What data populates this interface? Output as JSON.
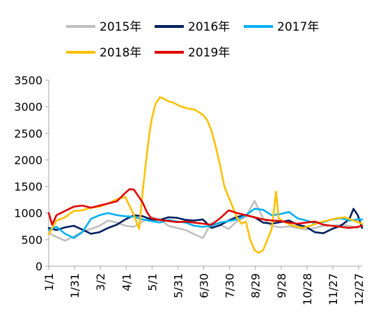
{
  "chart_data": {
    "type": "line",
    "title": "",
    "xlabel": "",
    "ylabel": "",
    "ylim": [
      0,
      3500
    ],
    "yticks": [
      0,
      500,
      1000,
      1500,
      2000,
      2500,
      3000,
      3500
    ],
    "xlim": [
      1,
      365
    ],
    "xticks": [
      {
        "day": 1,
        "label": "1/1"
      },
      {
        "day": 31,
        "label": "1/31"
      },
      {
        "day": 61,
        "label": "3/2"
      },
      {
        "day": 91,
        "label": "4/1"
      },
      {
        "day": 121,
        "label": "5/1"
      },
      {
        "day": 151,
        "label": "5/31"
      },
      {
        "day": 181,
        "label": "6/30"
      },
      {
        "day": 211,
        "label": "7/30"
      },
      {
        "day": 241,
        "label": "8/29"
      },
      {
        "day": 271,
        "label": "9/28"
      },
      {
        "day": 301,
        "label": "10/28"
      },
      {
        "day": 331,
        "label": "11/27"
      },
      {
        "day": 361,
        "label": "12/27"
      }
    ],
    "grid": false,
    "legend_position": "top",
    "series": [
      {
        "name": "2015年",
        "color": "#bfbfbf",
        "points": [
          [
            1,
            620
          ],
          [
            10,
            550
          ],
          [
            20,
            480
          ],
          [
            30,
            560
          ],
          [
            40,
            650
          ],
          [
            50,
            700
          ],
          [
            60,
            760
          ],
          [
            70,
            860
          ],
          [
            80,
            820
          ],
          [
            90,
            760
          ],
          [
            100,
            740
          ],
          [
            110,
            840
          ],
          [
            120,
            930
          ],
          [
            130,
            880
          ],
          [
            140,
            760
          ],
          [
            150,
            720
          ],
          [
            160,
            680
          ],
          [
            170,
            600
          ],
          [
            180,
            530
          ],
          [
            190,
            820
          ],
          [
            200,
            780
          ],
          [
            210,
            700
          ],
          [
            220,
            850
          ],
          [
            230,
            930
          ],
          [
            240,
            1230
          ],
          [
            250,
            900
          ],
          [
            260,
            760
          ],
          [
            270,
            730
          ],
          [
            280,
            750
          ],
          [
            290,
            720
          ],
          [
            300,
            690
          ],
          [
            310,
            720
          ],
          [
            320,
            760
          ],
          [
            330,
            760
          ],
          [
            340,
            780
          ],
          [
            350,
            760
          ],
          [
            360,
            720
          ],
          [
            365,
            800
          ]
        ]
      },
      {
        "name": "2016年",
        "color": "#002060",
        "points": [
          [
            1,
            720
          ],
          [
            10,
            680
          ],
          [
            20,
            730
          ],
          [
            30,
            760
          ],
          [
            40,
            690
          ],
          [
            50,
            610
          ],
          [
            60,
            640
          ],
          [
            70,
            720
          ],
          [
            80,
            780
          ],
          [
            90,
            880
          ],
          [
            100,
            960
          ],
          [
            110,
            940
          ],
          [
            120,
            880
          ],
          [
            130,
            870
          ],
          [
            140,
            920
          ],
          [
            150,
            910
          ],
          [
            160,
            870
          ],
          [
            170,
            860
          ],
          [
            180,
            880
          ],
          [
            190,
            720
          ],
          [
            200,
            770
          ],
          [
            210,
            860
          ],
          [
            220,
            930
          ],
          [
            230,
            960
          ],
          [
            240,
            920
          ],
          [
            250,
            820
          ],
          [
            260,
            800
          ],
          [
            270,
            830
          ],
          [
            280,
            860
          ],
          [
            290,
            780
          ],
          [
            300,
            740
          ],
          [
            310,
            640
          ],
          [
            320,
            620
          ],
          [
            330,
            700
          ],
          [
            340,
            760
          ],
          [
            350,
            880
          ],
          [
            355,
            1080
          ],
          [
            360,
            960
          ],
          [
            365,
            720
          ]
        ]
      },
      {
        "name": "2017年",
        "color": "#00b0f0",
        "points": [
          [
            1,
            680
          ],
          [
            10,
            740
          ],
          [
            20,
            610
          ],
          [
            30,
            530
          ],
          [
            40,
            640
          ],
          [
            50,
            890
          ],
          [
            60,
            960
          ],
          [
            70,
            1000
          ],
          [
            80,
            960
          ],
          [
            90,
            940
          ],
          [
            100,
            930
          ],
          [
            110,
            880
          ],
          [
            120,
            850
          ],
          [
            130,
            820
          ],
          [
            140,
            870
          ],
          [
            150,
            840
          ],
          [
            160,
            820
          ],
          [
            170,
            760
          ],
          [
            180,
            740
          ],
          [
            190,
            760
          ],
          [
            200,
            820
          ],
          [
            210,
            850
          ],
          [
            220,
            880
          ],
          [
            230,
            960
          ],
          [
            240,
            1080
          ],
          [
            250,
            1060
          ],
          [
            260,
            960
          ],
          [
            270,
            980
          ],
          [
            280,
            1020
          ],
          [
            290,
            900
          ],
          [
            300,
            860
          ],
          [
            310,
            810
          ],
          [
            320,
            830
          ],
          [
            330,
            880
          ],
          [
            340,
            900
          ],
          [
            350,
            860
          ],
          [
            360,
            880
          ],
          [
            365,
            880
          ]
        ]
      },
      {
        "name": "2018年",
        "color": "#ffc000",
        "points": [
          [
            1,
            600
          ],
          [
            10,
            860
          ],
          [
            20,
            920
          ],
          [
            30,
            1040
          ],
          [
            40,
            1050
          ],
          [
            50,
            1100
          ],
          [
            60,
            1120
          ],
          [
            70,
            1180
          ],
          [
            80,
            1260
          ],
          [
            90,
            1300
          ],
          [
            100,
            960
          ],
          [
            106,
            700
          ],
          [
            110,
            1400
          ],
          [
            115,
            2100
          ],
          [
            118,
            2500
          ],
          [
            121,
            2800
          ],
          [
            125,
            3050
          ],
          [
            130,
            3180
          ],
          [
            135,
            3150
          ],
          [
            140,
            3100
          ],
          [
            145,
            3080
          ],
          [
            150,
            3040
          ],
          [
            155,
            3000
          ],
          [
            160,
            2980
          ],
          [
            165,
            2960
          ],
          [
            170,
            2950
          ],
          [
            175,
            2900
          ],
          [
            180,
            2850
          ],
          [
            185,
            2750
          ],
          [
            190,
            2550
          ],
          [
            195,
            2250
          ],
          [
            200,
            1900
          ],
          [
            205,
            1500
          ],
          [
            210,
            1300
          ],
          [
            215,
            1100
          ],
          [
            220,
            900
          ],
          [
            225,
            800
          ],
          [
            230,
            840
          ],
          [
            235,
            500
          ],
          [
            240,
            300
          ],
          [
            245,
            250
          ],
          [
            250,
            300
          ],
          [
            255,
            500
          ],
          [
            260,
            700
          ],
          [
            265,
            1400
          ],
          [
            268,
            900
          ],
          [
            275,
            830
          ],
          [
            285,
            760
          ],
          [
            295,
            720
          ],
          [
            305,
            760
          ],
          [
            315,
            820
          ],
          [
            325,
            860
          ],
          [
            335,
            900
          ],
          [
            345,
            920
          ],
          [
            355,
            860
          ],
          [
            365,
            800
          ]
        ]
      },
      {
        "name": "2019年",
        "color": "#e00000",
        "points": [
          [
            1,
            1000
          ],
          [
            5,
            780
          ],
          [
            10,
            960
          ],
          [
            20,
            1040
          ],
          [
            30,
            1120
          ],
          [
            40,
            1140
          ],
          [
            50,
            1100
          ],
          [
            60,
            1140
          ],
          [
            70,
            1180
          ],
          [
            80,
            1220
          ],
          [
            90,
            1380
          ],
          [
            95,
            1450
          ],
          [
            100,
            1440
          ],
          [
            105,
            1320
          ],
          [
            110,
            1200
          ],
          [
            115,
            1020
          ],
          [
            120,
            900
          ],
          [
            130,
            870
          ],
          [
            140,
            850
          ],
          [
            150,
            830
          ],
          [
            160,
            840
          ],
          [
            170,
            820
          ],
          [
            180,
            800
          ],
          [
            190,
            780
          ],
          [
            200,
            900
          ],
          [
            210,
            1050
          ],
          [
            220,
            1000
          ],
          [
            230,
            960
          ],
          [
            240,
            920
          ],
          [
            250,
            880
          ],
          [
            260,
            860
          ],
          [
            270,
            850
          ],
          [
            280,
            820
          ],
          [
            290,
            800
          ],
          [
            300,
            820
          ],
          [
            310,
            840
          ],
          [
            320,
            780
          ],
          [
            330,
            760
          ],
          [
            340,
            740
          ],
          [
            350,
            720
          ],
          [
            360,
            740
          ],
          [
            365,
            760
          ]
        ]
      }
    ]
  }
}
